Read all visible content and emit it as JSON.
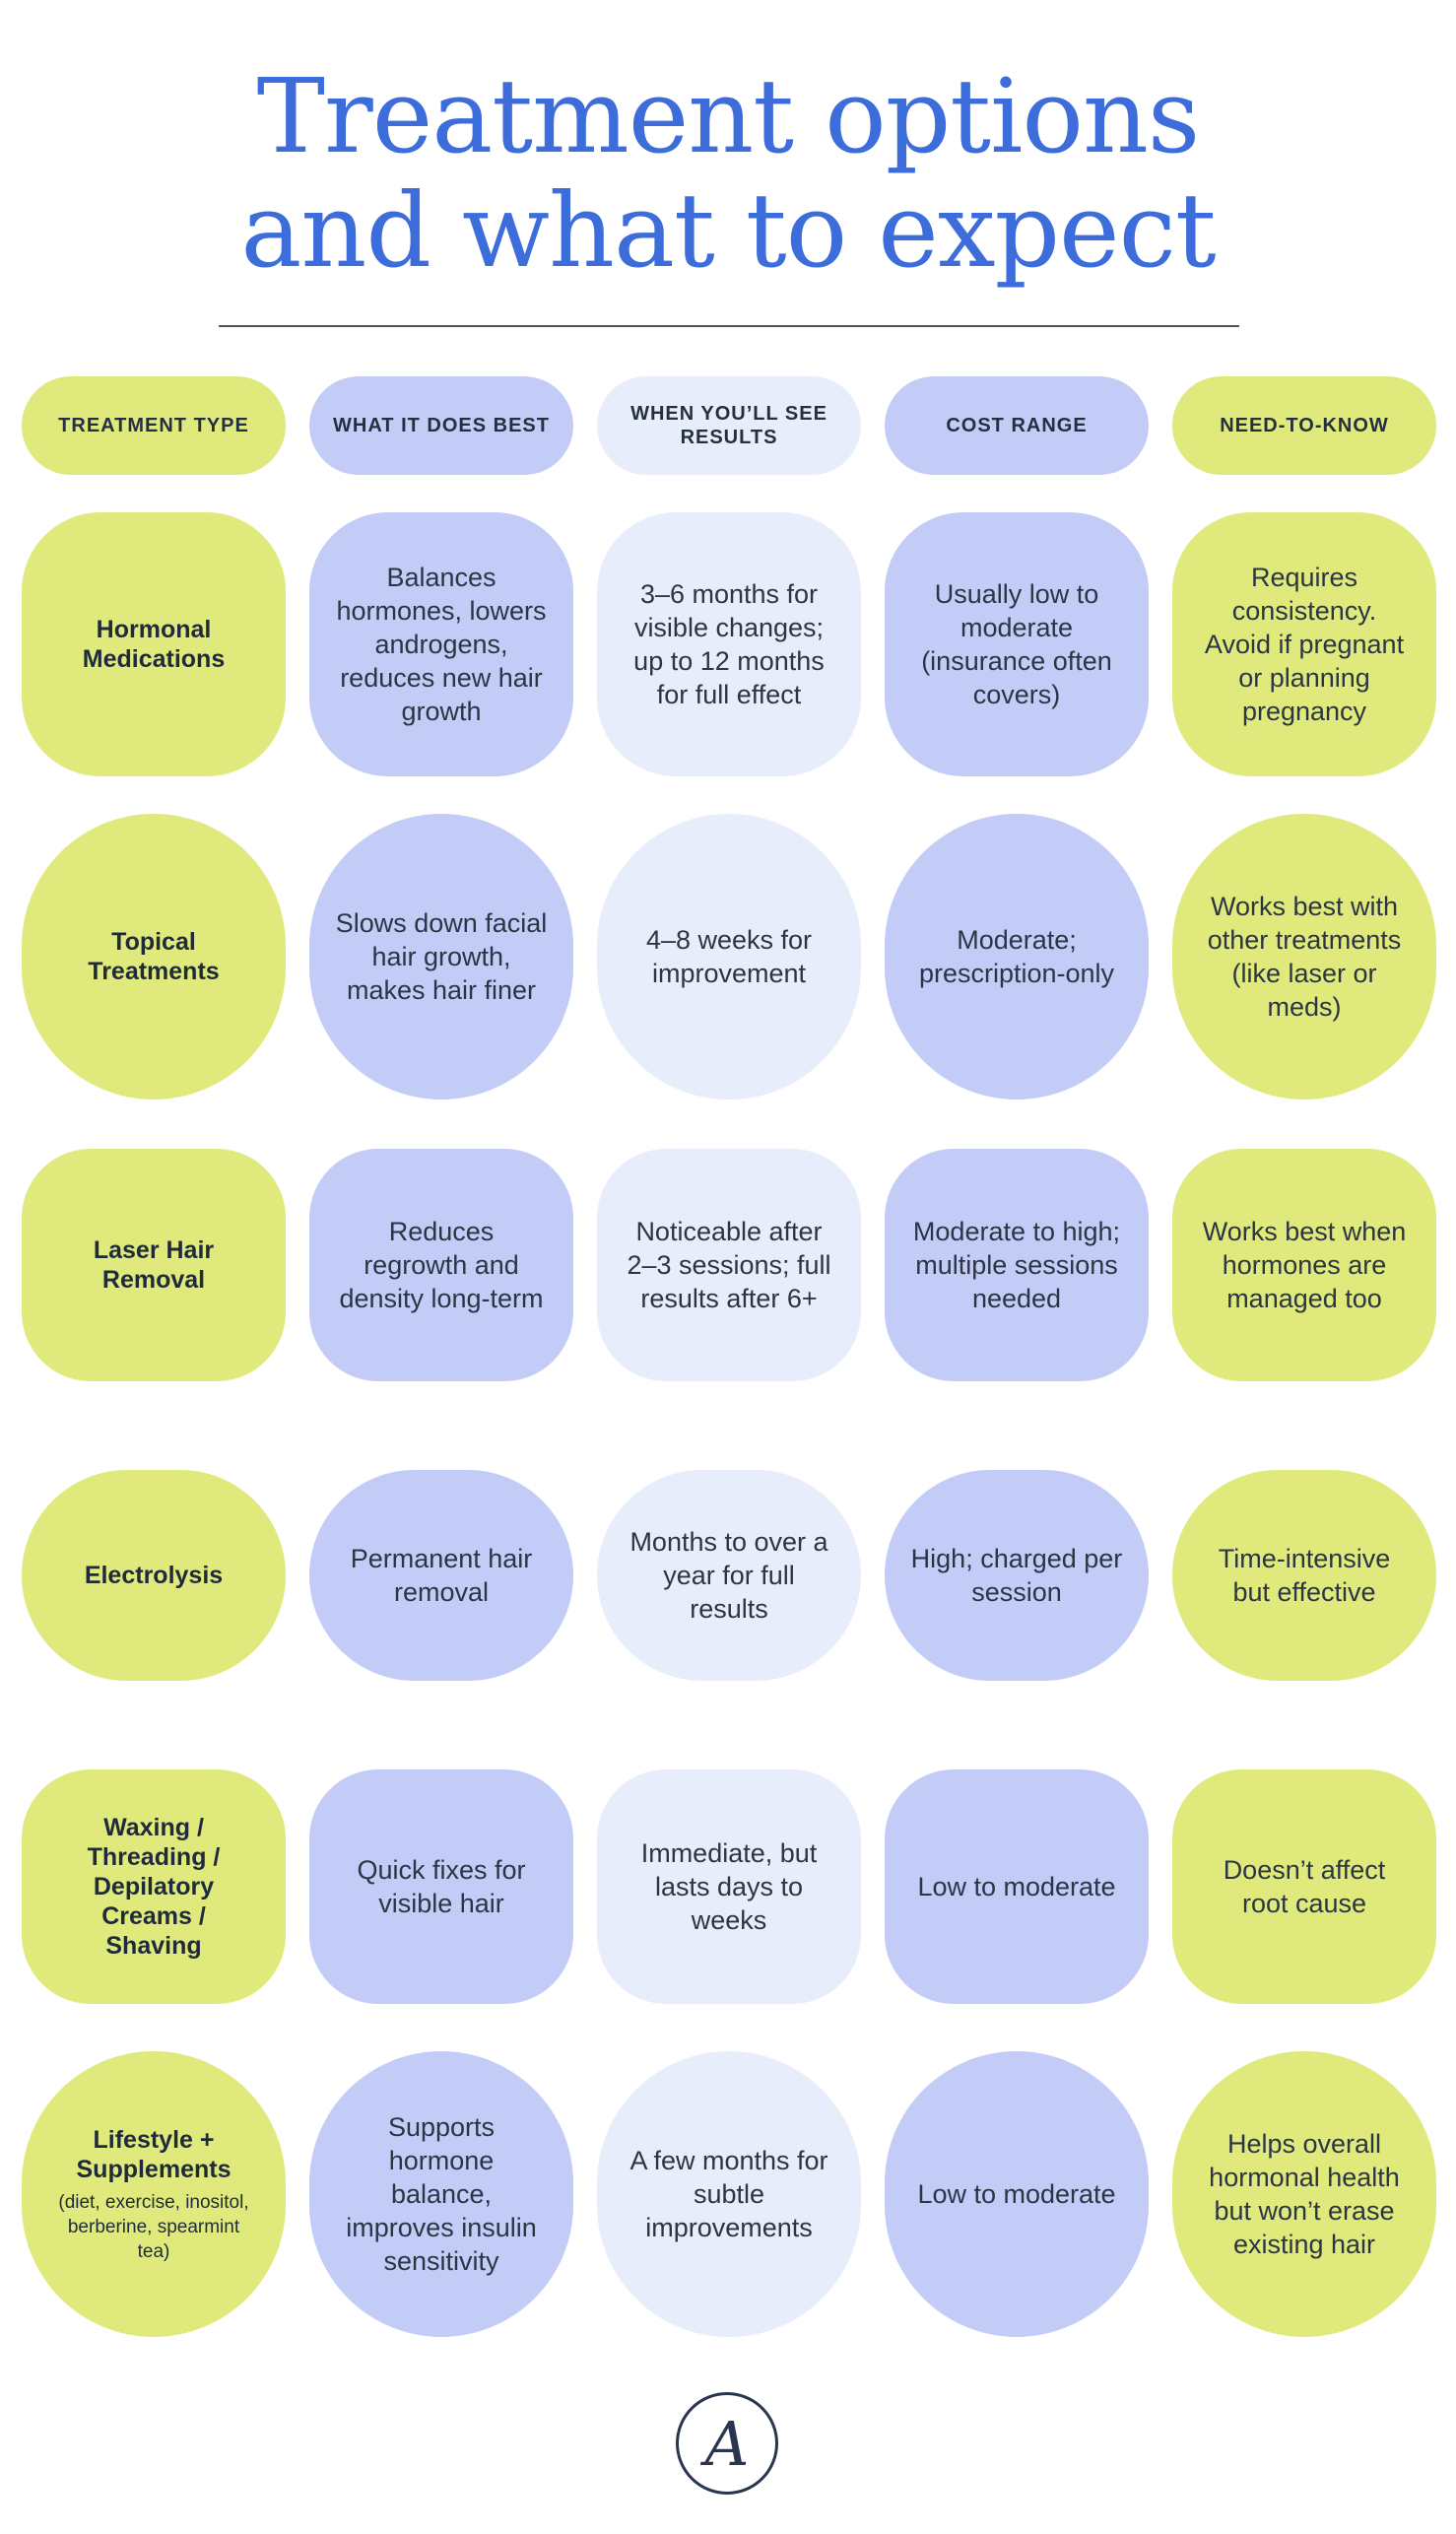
{
  "title": {
    "line1": "Treatment options",
    "line2": "and what to expect"
  },
  "headers": [
    "TREATMENT TYPE",
    "WHAT IT DOES BEST",
    "WHEN YOU’LL SEE RESULTS",
    "COST RANGE",
    "NEED-TO-KNOW"
  ],
  "rows": [
    {
      "type": "Hormonal Medications",
      "best": "Balances hormones, lowers androgens, reduces new hair growth",
      "results": "3–6 months for visible changes; up to 12 months for full effect",
      "cost": "Usually low to moderate (insurance often covers)",
      "need": "Requires consistency. Avoid if pregnant or planning pregnancy"
    },
    {
      "type": "Topical Treatments",
      "best": "Slows down facial hair growth, makes hair finer",
      "results": "4–8 weeks for improvement",
      "cost": "Moderate; prescription-only",
      "need": "Works best with other treatments (like laser or meds)"
    },
    {
      "type": "Laser Hair Removal",
      "best": "Reduces regrowth and density long-term",
      "results": "Noticeable after 2–3 sessions; full results after 6+",
      "cost": "Moderate to high; multiple sessions needed",
      "need": "Works best when hormones are managed too"
    },
    {
      "type": "Electrolysis",
      "best": "Permanent hair removal",
      "results": "Months to over a year for full results",
      "cost": "High; charged per session",
      "need": "Time-intensive but effective"
    },
    {
      "type": "Waxing / Threading / Depilatory Creams / Shaving",
      "best": "Quick fixes for visible hair",
      "results": "Immediate, but lasts days to weeks",
      "cost": "Low to moderate",
      "need": "Doesn’t affect root cause"
    },
    {
      "type": "Lifestyle + Supplements",
      "type_note": "(diet, exercise, inositol, berberine, spearmint tea)",
      "best": "Supports hormone balance, improves insulin sensitivity",
      "results": "A few months for subtle improvements",
      "cost": "Low to moderate",
      "need": "Helps overall hormonal health but won’t erase existing hair"
    }
  ],
  "logo": "A",
  "colors": {
    "title": "#3d6ddb",
    "lime": "#e0ea7c",
    "periwinkle": "#c3cbf7",
    "pale": "#e8edfb"
  }
}
